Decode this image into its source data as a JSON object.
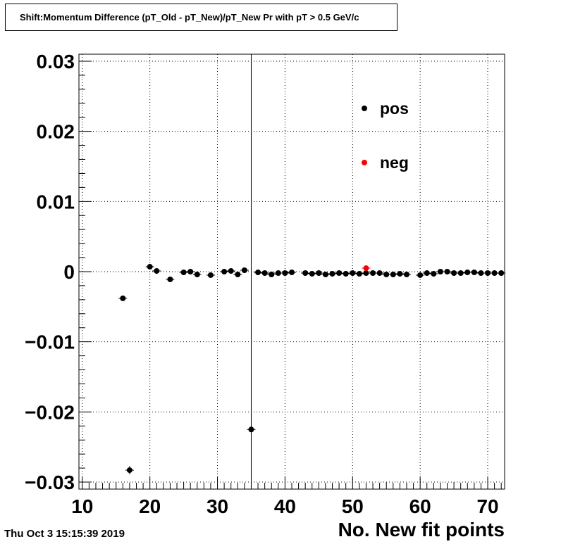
{
  "title": "Shift:Momentum Difference (pT_Old - pT_New)/pT_New Pr with pT > 0.5 GeV/c",
  "timestamp": "Thu Oct  3 15:15:39 2019",
  "chart_data": {
    "type": "scatter",
    "title": "Shift:Momentum Difference (pT_Old - pT_New)/pT_New Pr with pT > 0.5 GeV/c",
    "xlabel": "No. New fit points",
    "ylabel": "",
    "xlim": [
      9.5,
      72.5
    ],
    "ylim": [
      -0.031,
      0.031
    ],
    "x_ticks": [
      10,
      20,
      30,
      40,
      50,
      60,
      70
    ],
    "x_tick_labels": [
      "10",
      "20",
      "30",
      "40",
      "50",
      "60",
      "70"
    ],
    "y_ticks": [
      -0.03,
      -0.02,
      -0.01,
      0,
      0.01,
      0.02,
      0.03
    ],
    "y_tick_labels": [
      "−0.03",
      "−0.02",
      "−0.01",
      "0",
      "0.01",
      "0.02",
      "0.03"
    ],
    "grid": true,
    "vertical_line_x": 35,
    "legend": {
      "placement": "top-right"
    },
    "series": [
      {
        "name": "pos",
        "color": "#000000",
        "x": [
          16,
          17,
          20,
          21,
          23,
          25,
          26,
          27,
          29,
          31,
          32,
          33,
          34,
          35,
          36,
          37,
          38,
          39,
          40,
          41,
          43,
          44,
          45,
          46,
          47,
          48,
          49,
          50,
          51,
          52,
          53,
          54,
          55,
          56,
          57,
          58,
          60,
          61,
          62,
          63,
          64,
          65,
          66,
          67,
          68,
          69,
          70,
          71,
          72
        ],
        "y": [
          -0.0038,
          -0.0283,
          0.0007,
          0.0001,
          -0.0011,
          -0.0001,
          0.0,
          -0.0004,
          -0.0005,
          0.0,
          0.0001,
          -0.0004,
          0.0002,
          -0.0225,
          -0.0001,
          -0.0002,
          -0.0004,
          -0.0002,
          -0.0002,
          -0.0001,
          -0.0002,
          -0.0003,
          -0.0002,
          -0.0004,
          -0.0003,
          -0.0002,
          -0.0003,
          -0.0002,
          -0.0003,
          -0.0002,
          -0.0002,
          -0.0002,
          -0.0004,
          -0.0004,
          -0.0003,
          -0.0004,
          -0.0005,
          -0.0002,
          -0.0003,
          0.0,
          0.0,
          -0.0002,
          -0.0002,
          -0.0001,
          -0.0001,
          -0.0002,
          -0.0002,
          -0.0002,
          -0.0002
        ]
      },
      {
        "name": "neg",
        "color": "#ff0000",
        "x": [
          52
        ],
        "y": [
          0.0005
        ]
      }
    ]
  }
}
